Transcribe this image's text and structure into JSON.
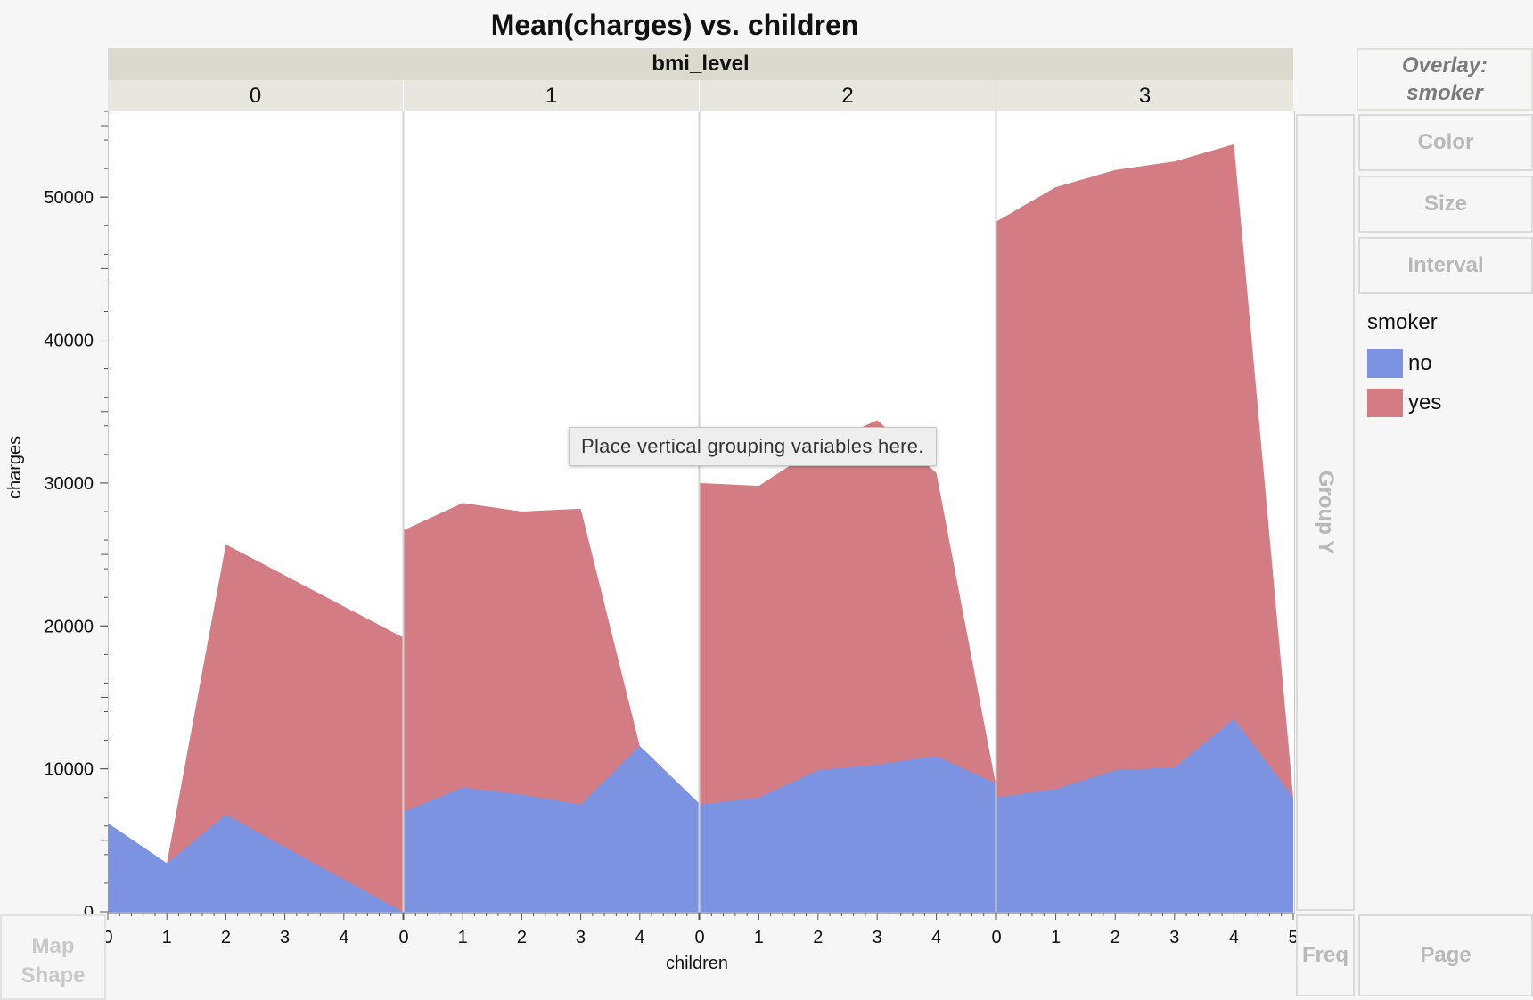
{
  "title": "Mean(charges) vs. children",
  "group_x_header": "bmi_level",
  "group_x_levels": [
    "0",
    "1",
    "2",
    "3"
  ],
  "y_axis_label": "charges",
  "x_axis_label": "children",
  "tooltip": "Place vertical grouping variables here.",
  "drop_zones": {
    "overlay_label": "Overlay:",
    "overlay_value": "smoker",
    "color": "Color",
    "size": "Size",
    "interval": "Interval",
    "group_y": "Group Y",
    "map_shape_line1": "Map",
    "map_shape_line2": "Shape",
    "freq": "Freq",
    "page": "Page"
  },
  "legend": {
    "title": "smoker",
    "items": [
      {
        "label": "no",
        "color": "#7b93e0"
      },
      {
        "label": "yes",
        "color": "#d47c83"
      }
    ]
  },
  "chart_data": {
    "type": "area",
    "title": "Mean(charges) vs. children",
    "xlabel": "children",
    "ylabel": "charges",
    "ylim": [
      0,
      56000
    ],
    "y_ticks": [
      0,
      10000,
      20000,
      30000,
      40000,
      50000
    ],
    "grid": false,
    "legend_position": "right",
    "panel_variable": "bmi_level",
    "series_names": [
      "no",
      "yes"
    ],
    "series_colors": {
      "no": "#7b93e0",
      "yes": "#d47c83"
    },
    "panels": [
      {
        "level": "0",
        "x_ticks": [
          0,
          1,
          2,
          3,
          4
        ],
        "xlim": [
          0,
          5
        ],
        "series": [
          {
            "name": "no",
            "x": [
              0,
              1,
              2,
              5
            ],
            "values": [
              6200,
              3400,
              6800,
              0
            ]
          },
          {
            "name": "yes",
            "x": [
              0,
              1,
              2,
              5
            ],
            "values": [
              6200,
              3400,
              25700,
              19200
            ]
          }
        ]
      },
      {
        "level": "1",
        "x_ticks": [
          0,
          1,
          2,
          3,
          4
        ],
        "xlim": [
          0,
          5
        ],
        "series": [
          {
            "name": "no",
            "x": [
              0,
              1,
              2,
              3,
              4,
              5
            ],
            "values": [
              7000,
              8700,
              8200,
              7500,
              11600,
              7600
            ]
          },
          {
            "name": "yes",
            "x": [
              0,
              1,
              2,
              3,
              4,
              5
            ],
            "values": [
              26700,
              28600,
              28000,
              28200,
              11600,
              7600
            ]
          }
        ]
      },
      {
        "level": "2",
        "x_ticks": [
          0,
          1,
          2,
          3,
          4
        ],
        "xlim": [
          0,
          5
        ],
        "series": [
          {
            "name": "no",
            "x": [
              0,
              1,
              2,
              3,
              4,
              5
            ],
            "values": [
              7500,
              8000,
              9900,
              10300,
              10900,
              9000
            ]
          },
          {
            "name": "yes",
            "x": [
              0,
              1,
              2,
              3,
              4,
              5
            ],
            "values": [
              30000,
              29800,
              32500,
              34400,
              30700,
              9000
            ]
          }
        ]
      },
      {
        "level": "3",
        "x_ticks": [
          0,
          1,
          2,
          3,
          4,
          5
        ],
        "xlim": [
          0,
          5
        ],
        "series": [
          {
            "name": "no",
            "x": [
              0,
              1,
              2,
              3,
              4,
              5
            ],
            "values": [
              8000,
              8600,
              9900,
              10100,
              13500,
              8000
            ]
          },
          {
            "name": "yes",
            "x": [
              0,
              1,
              2,
              3,
              4,
              5
            ],
            "values": [
              48300,
              50700,
              51900,
              52500,
              53700,
              8000
            ]
          }
        ]
      }
    ]
  }
}
